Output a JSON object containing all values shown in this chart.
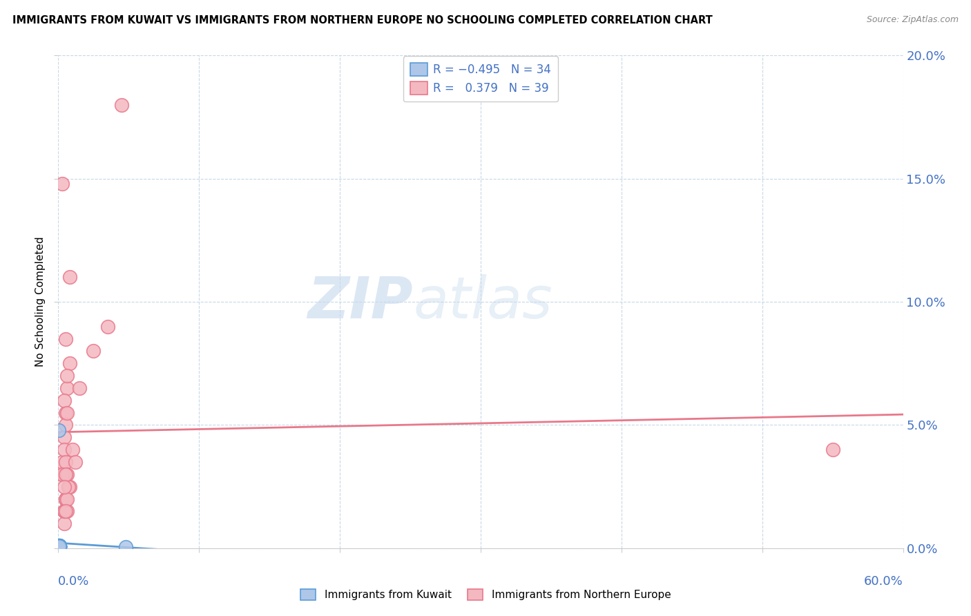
{
  "title": "IMMIGRANTS FROM KUWAIT VS IMMIGRANTS FROM NORTHERN EUROPE NO SCHOOLING COMPLETED CORRELATION CHART",
  "source": "Source: ZipAtlas.com",
  "ylabel": "No Schooling Completed",
  "yticks": [
    "0.0%",
    "5.0%",
    "10.0%",
    "15.0%",
    "20.0%"
  ],
  "ytick_vals": [
    0,
    5,
    10,
    15,
    20
  ],
  "xlim": [
    0,
    60
  ],
  "ylim": [
    0,
    20
  ],
  "legend_label1": "Immigrants from Kuwait",
  "legend_label2": "Immigrants from Northern Europe",
  "color_kuwait": "#aec6e8",
  "color_ne": "#f4b8c1",
  "color_kuwait_edge": "#5b9bd5",
  "color_ne_edge": "#e8788a",
  "color_trendline_kuwait": "#5b9bd5",
  "color_trendline_ne": "#e8788a",
  "kuwait_x": [
    0.05,
    0.08,
    0.05,
    0.06,
    0.07,
    0.05,
    0.06,
    0.05,
    0.07,
    0.06,
    0.05,
    0.07,
    0.06,
    0.05,
    0.08,
    0.06,
    0.05,
    0.07,
    0.05,
    0.06,
    0.05,
    0.06,
    0.07,
    0.05,
    0.06,
    0.05,
    0.07,
    0.08,
    0.06,
    0.05,
    0.06,
    0.05,
    4.8,
    0.07
  ],
  "kuwait_y": [
    0.05,
    0.1,
    0.08,
    0.05,
    0.12,
    0.07,
    0.06,
    0.09,
    0.05,
    0.1,
    0.06,
    0.08,
    0.05,
    0.07,
    0.06,
    0.09,
    0.05,
    0.07,
    0.06,
    0.08,
    0.1,
    0.05,
    0.07,
    0.06,
    0.05,
    4.8,
    0.08,
    0.06,
    0.07,
    0.05,
    0.09,
    0.06,
    0.05,
    0.07
  ],
  "ne_x": [
    0.3,
    0.8,
    0.5,
    0.4,
    0.6,
    0.3,
    0.5,
    0.4,
    2.5,
    0.6,
    0.4,
    1.5,
    0.5,
    0.8,
    0.6,
    0.4,
    3.5,
    0.5,
    0.8,
    0.3,
    0.5,
    1.0,
    0.4,
    0.6,
    0.5,
    1.2,
    0.4,
    0.7,
    0.5,
    55.0,
    0.4,
    0.6,
    0.5,
    0.3,
    4.5,
    0.4,
    0.6,
    0.5,
    0.4
  ],
  "ne_y": [
    3.0,
    7.5,
    5.5,
    4.5,
    6.5,
    3.5,
    5.0,
    6.0,
    8.0,
    7.0,
    3.0,
    6.5,
    8.5,
    11.0,
    5.5,
    4.0,
    9.0,
    3.5,
    2.5,
    3.0,
    2.0,
    4.0,
    1.5,
    3.0,
    2.0,
    3.5,
    1.5,
    2.5,
    2.0,
    4.0,
    1.0,
    1.5,
    3.0,
    14.8,
    18.0,
    1.5,
    2.0,
    1.5,
    2.5
  ]
}
